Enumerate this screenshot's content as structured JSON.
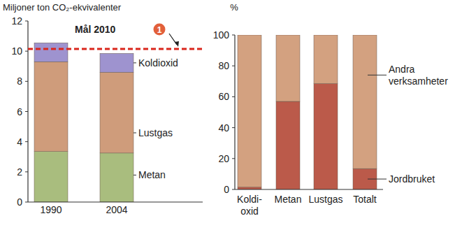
{
  "chart_data": [
    {
      "type": "bar",
      "stacked": true,
      "ylabel": "Miljoner ton CO₂-ekvivalenter",
      "categories": [
        "1990",
        "2004"
      ],
      "series": [
        {
          "name": "Metan",
          "color": "#a9bd7e",
          "values": [
            3.35,
            3.25
          ]
        },
        {
          "name": "Lustgas",
          "color": "#cf9c7b",
          "values": [
            5.95,
            5.35
          ]
        },
        {
          "name": "Koldioxid",
          "color": "#9e93cf",
          "values": [
            1.25,
            1.25
          ]
        }
      ],
      "ylim": [
        0,
        12
      ],
      "yticks": [
        0,
        2,
        4,
        6,
        8,
        10,
        12
      ],
      "target": {
        "label": "Mål 2010",
        "value": 10.15,
        "badge": "1",
        "color": "#d9261c"
      }
    },
    {
      "type": "bar",
      "stacked": true,
      "ylabel": "%",
      "categories": [
        "Koldi-\noxid",
        "Metan",
        "Lustgas",
        "Totalt"
      ],
      "series": [
        {
          "name": "Jordbruket",
          "color": "#bb5a4a",
          "values": [
            1.5,
            57,
            68.5,
            13.5
          ]
        },
        {
          "name": "Andra verksamheter",
          "color": "#d3a180",
          "values": [
            98.5,
            43,
            31.5,
            86.5
          ]
        }
      ],
      "ylim": [
        0,
        100
      ],
      "yticks": [
        0,
        20,
        40,
        60,
        80,
        100
      ]
    }
  ]
}
